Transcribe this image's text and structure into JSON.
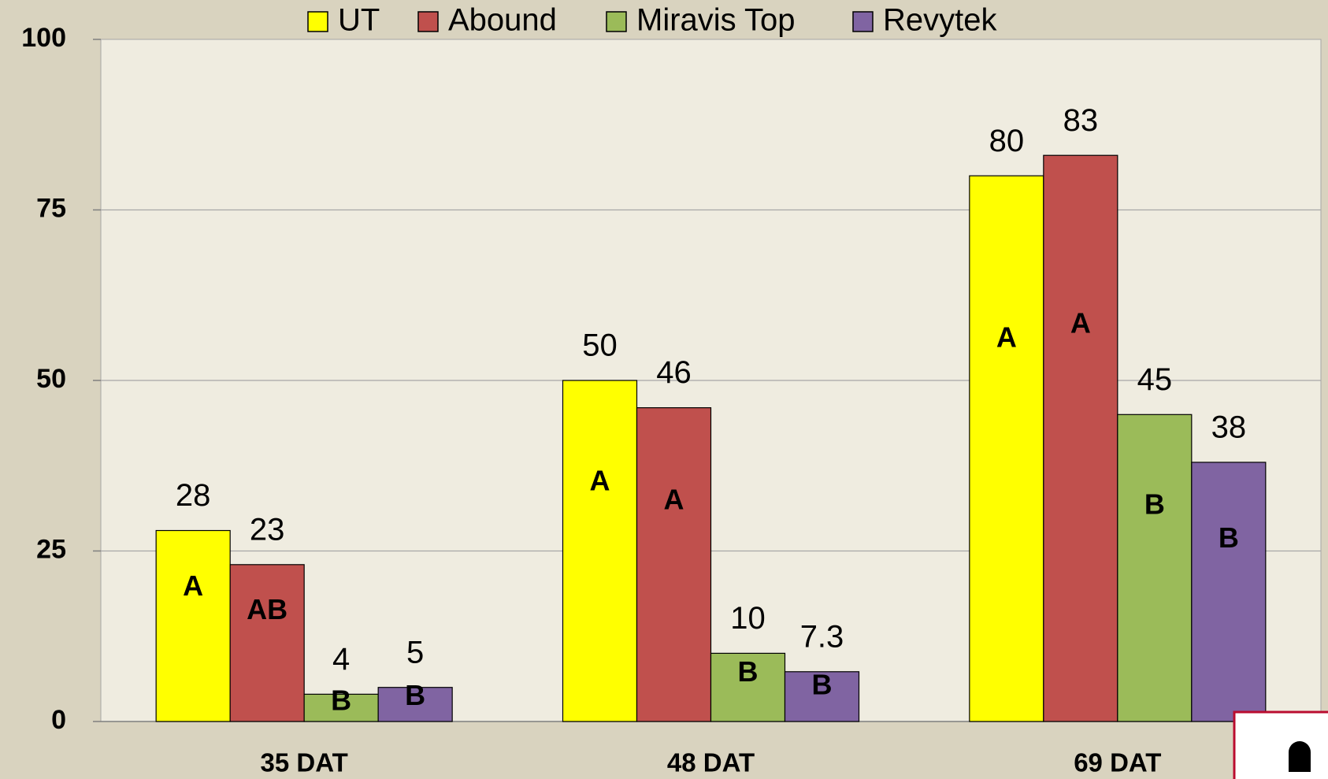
{
  "chart_data": {
    "type": "bar",
    "categories": [
      "35 DAT",
      "48 DAT",
      "69 DAT"
    ],
    "series": [
      {
        "name": "UT",
        "color": "#ffff00",
        "values": [
          28,
          50,
          80
        ],
        "letters": [
          "A",
          "A",
          "A"
        ]
      },
      {
        "name": "Abound",
        "color": "#c0504d",
        "values": [
          23,
          46,
          83
        ],
        "letters": [
          "AB",
          "A",
          "A"
        ]
      },
      {
        "name": "Miravis Top",
        "color": "#9bbb59",
        "values": [
          4,
          10,
          45
        ],
        "letters": [
          "B",
          "B",
          "B"
        ]
      },
      {
        "name": "Revytek",
        "color": "#8064a2",
        "values": [
          5,
          7.3,
          38
        ],
        "letters": [
          "B",
          "B",
          "B"
        ]
      }
    ],
    "ylim": [
      0,
      100
    ],
    "yticks": [
      0,
      25,
      50,
      75,
      100
    ],
    "grid": true,
    "legend": "top"
  }
}
